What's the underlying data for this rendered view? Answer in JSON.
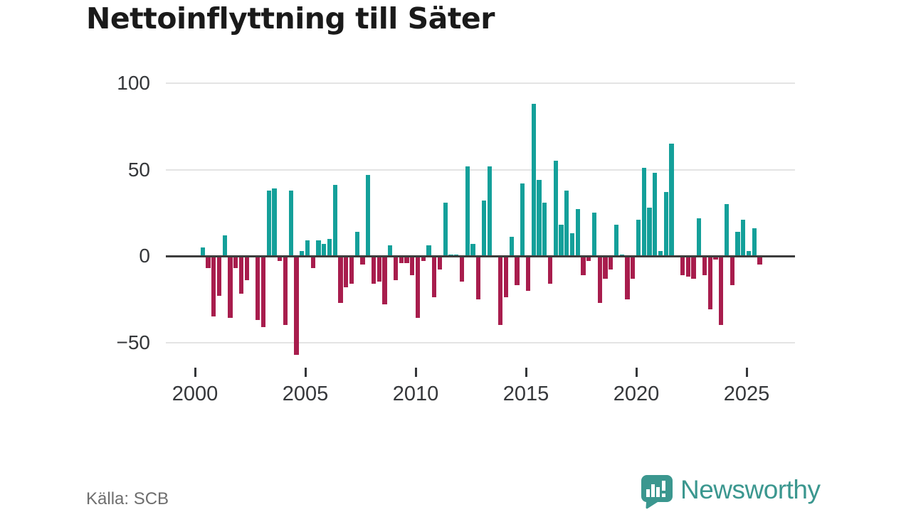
{
  "header": {
    "title": "Nettoinflyttning till Säter"
  },
  "footer": {
    "source": "Källa: SCB",
    "brand": "Newsworthy"
  },
  "chart_data": {
    "type": "bar",
    "title": "Nettoinflyttning till Säter",
    "xlabel": "",
    "ylabel": "",
    "x_start": "2000",
    "interval": "quarter",
    "x_tick_labels": [
      "2000",
      "2005",
      "2010",
      "2015",
      "2020",
      "2025"
    ],
    "y_ticks": [
      100,
      50,
      0,
      -50
    ],
    "ylim": [
      -65,
      105
    ],
    "grid": true,
    "legend_position": "none",
    "colors": {
      "positive": "#14a09a",
      "negative": "#a81d4d"
    },
    "values": [
      -1,
      5,
      -7,
      -35,
      -23,
      12,
      -36,
      -7,
      -22,
      -14,
      0,
      -37,
      -41,
      38,
      39,
      -3,
      -40,
      38,
      -57,
      3,
      9,
      -7,
      9,
      7,
      10,
      41,
      -27,
      -18,
      -16,
      14,
      -5,
      47,
      -16,
      -15,
      -28,
      6,
      -14,
      -4,
      -4,
      -11,
      -36,
      -3,
      6,
      -24,
      -8,
      31,
      1,
      1,
      -15,
      52,
      7,
      -25,
      32,
      52,
      0,
      -40,
      -24,
      11,
      -17,
      42,
      -20,
      88,
      44,
      31,
      -16,
      55,
      18,
      38,
      13,
      27,
      -11,
      -3,
      25,
      -27,
      -13,
      -8,
      18,
      1,
      -25,
      -13,
      21,
      51,
      28,
      48,
      3,
      37,
      65,
      0,
      -11,
      -12,
      -13,
      22,
      -11,
      -31,
      -2,
      -40,
      30,
      -17,
      14,
      21,
      3,
      16,
      -5
    ]
  }
}
